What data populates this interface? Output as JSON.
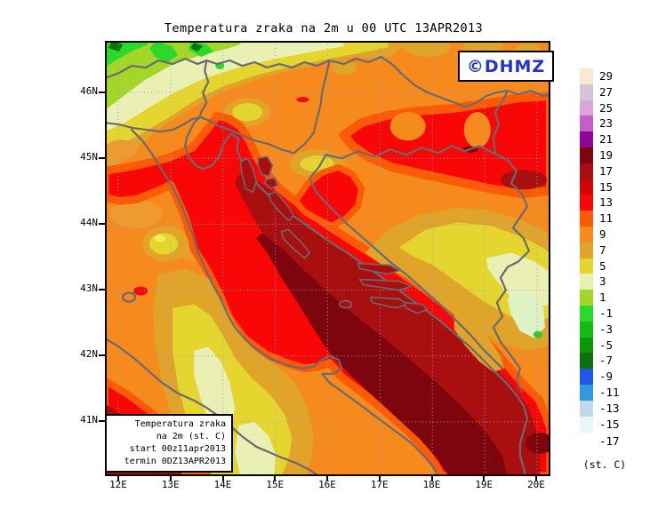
{
  "title": "Temperatura zraka na 2m u 00 UTC 13APR2013",
  "watermark": {
    "label": "©DHMZ",
    "color": "#2233CC"
  },
  "map": {
    "x_ticks": [
      "12E",
      "13E",
      "14E",
      "15E",
      "16E",
      "17E",
      "18E",
      "19E",
      "20E"
    ],
    "y_ticks": [
      "46N",
      "45N",
      "44N",
      "43N",
      "42N",
      "41N"
    ],
    "border_color": "#6A6A72",
    "grid_color": "#8FA5CF"
  },
  "legend_box": {
    "lines": [
      "Temperatura zraka",
      "na 2m (st. C)",
      "start 00z11apr2013",
      "termin 0DZ13APR2013"
    ]
  },
  "colorbar": {
    "units_label": "(st. C)",
    "extra_label": "-17",
    "cells": [
      {
        "label": "29",
        "color": "#FCE8CE"
      },
      {
        "label": "27",
        "color": "#D4C5D7"
      },
      {
        "label": "25",
        "color": "#DCA3DC"
      },
      {
        "label": "23",
        "color": "#C45EC8"
      },
      {
        "label": "21",
        "color": "#8E0795"
      },
      {
        "label": "19",
        "color": "#7E040E"
      },
      {
        "label": "17",
        "color": "#A90F0F"
      },
      {
        "label": "15",
        "color": "#D40505"
      },
      {
        "label": "13",
        "color": "#F90606"
      },
      {
        "label": "11",
        "color": "#FB5B07"
      },
      {
        "label": "9",
        "color": "#F68A1D"
      },
      {
        "label": "7",
        "color": "#DFA429"
      },
      {
        "label": "5",
        "color": "#E5D52F"
      },
      {
        "label": "3",
        "color": "#EAEFB4"
      },
      {
        "label": "1",
        "color": "#A3D629"
      },
      {
        "label": "-1",
        "color": "#2ADA2A"
      },
      {
        "label": "-3",
        "color": "#12BD12"
      },
      {
        "label": "-5",
        "color": "#079907"
      },
      {
        "label": "-7",
        "color": "#0B7209"
      },
      {
        "label": "-9",
        "color": "#2256E8"
      },
      {
        "label": "-11",
        "color": "#2F9BDF"
      },
      {
        "label": "-13",
        "color": "#BFD9E8"
      },
      {
        "label": "-15",
        "color": "#E6F6F9"
      }
    ]
  }
}
